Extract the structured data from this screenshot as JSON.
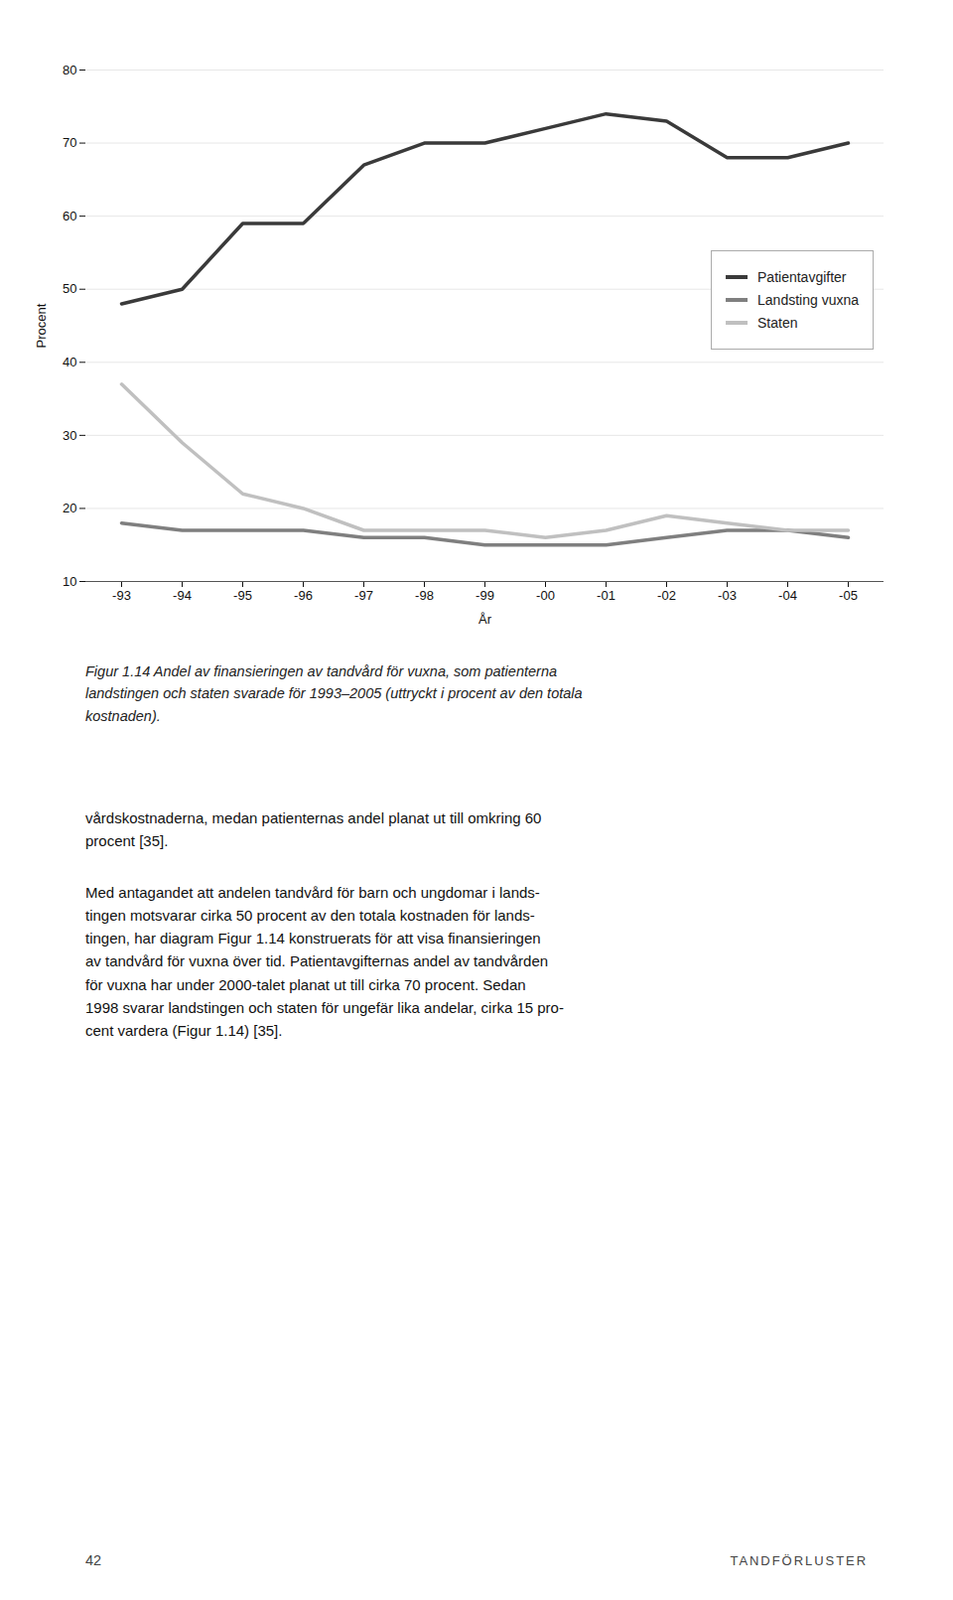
{
  "chart_data": {
    "type": "line",
    "categories": [
      "-93",
      "-94",
      "-95",
      "-96",
      "-97",
      "-98",
      "-99",
      "-00",
      "-01",
      "-02",
      "-03",
      "-04",
      "-05"
    ],
    "series": [
      {
        "name": "Patientavgifter",
        "color": "#3a3a3a",
        "values": [
          48,
          50,
          59,
          59,
          67,
          70,
          70,
          72,
          74,
          73,
          68,
          68,
          70
        ]
      },
      {
        "name": "Landsting vuxna",
        "color": "#7f7f7f",
        "values": [
          18,
          17,
          17,
          17,
          16,
          16,
          15,
          15,
          15,
          16,
          17,
          17,
          16
        ]
      },
      {
        "name": "Staten",
        "color": "#c0c0c0",
        "values": [
          37,
          29,
          22,
          20,
          17,
          17,
          17,
          16,
          17,
          19,
          18,
          17,
          17
        ]
      }
    ],
    "xlabel": "År",
    "ylabel": "Procent",
    "ylim": [
      10,
      80
    ],
    "yticks": [
      10,
      20,
      30,
      40,
      50,
      60,
      70,
      80
    ],
    "grid": true,
    "legend": "right",
    "caption": [
      "Figur 1.14 Andel av finansieringen av tandvård för vuxna, som patienterna",
      "landstingen och staten svarade för 1993–2005 (uttryckt i procent av den totala",
      "kostnaden)."
    ],
    "body": [
      [
        "vårdskostnaderna, medan patienternas andel planat ut till omkring 60",
        "procent [35]."
      ],
      [
        "Med antagandet att andelen tandvård för barn och ungdomar i lands-",
        "tingen motsvarar cirka 50 procent av den totala kostnaden för lands-",
        "tingen, har diagram Figur 1.14 konstruerats för att visa finansieringen",
        "av tandvård för vuxna över tid. Patientavgifternas andel av tandvården",
        "för vuxna har under 2000-talet planat ut till cirka 70 procent. Sedan",
        "1998 svarar landstingen och staten för ungefär lika andelar, cirka 15 pro-",
        "cent vardera (Figur 1.14) [35]."
      ]
    ],
    "footer_left": "42",
    "footer_right": "TANDFÖRLUSTER"
  }
}
